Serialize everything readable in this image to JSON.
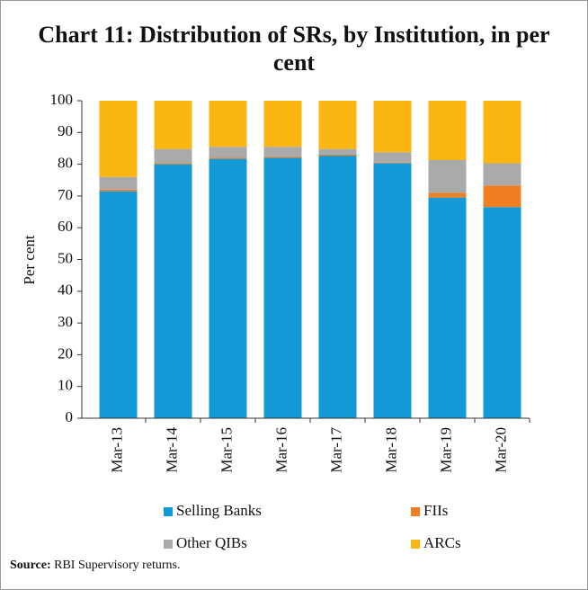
{
  "chart_data": {
    "type": "stacked_bar",
    "title": "Chart 11: Distribution of SRs, by Institution, in per cent",
    "ylabel": "Per cent",
    "categories": [
      "Mar-13",
      "Mar-14",
      "Mar-15",
      "Mar-16",
      "Mar-17",
      "Mar-18",
      "Mar-19",
      "Mar-20"
    ],
    "series": [
      {
        "name": "Selling Banks",
        "color": "#139ad6",
        "values": [
          71.5,
          80,
          81.7,
          82,
          82.7,
          80.3,
          69.5,
          66.5
        ]
      },
      {
        "name": "FIIs",
        "color": "#f07f24",
        "values": [
          0.5,
          0.3,
          0.3,
          0.3,
          0.3,
          0.2,
          1.5,
          6.8
        ]
      },
      {
        "name": "Other QIBs",
        "color": "#aaaaaa",
        "values": [
          4,
          4.5,
          3.5,
          3.2,
          1.8,
          3.3,
          10.3,
          7
        ]
      },
      {
        "name": "ARCs",
        "color": "#fbb612",
        "values": [
          24,
          15.2,
          14.5,
          14.5,
          15.2,
          16.2,
          18.7,
          19.7
        ]
      }
    ],
    "ylim": [
      0,
      100
    ],
    "yticks": [
      0,
      10,
      20,
      30,
      40,
      50,
      60,
      70,
      80,
      90,
      100
    ],
    "source": {
      "label": "Source:",
      "text": "RBI Supervisory returns."
    }
  }
}
